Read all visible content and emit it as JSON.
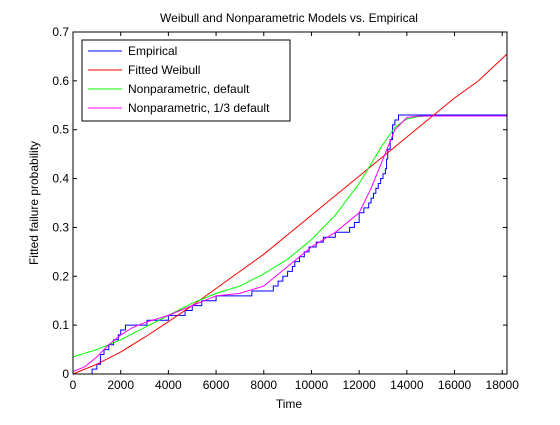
{
  "chart_data": {
    "type": "line",
    "title": "Weibull and Nonparametric Models vs. Empirical",
    "xlabel": "Time",
    "ylabel": "Fitted failure probability",
    "xlim": [
      0,
      18200
    ],
    "ylim": [
      0,
      0.7
    ],
    "xticks": [
      0,
      2000,
      4000,
      6000,
      8000,
      10000,
      12000,
      14000,
      16000,
      18000
    ],
    "yticks": [
      0,
      0.1,
      0.2,
      0.3,
      0.4,
      0.5,
      0.6,
      0.7
    ],
    "xtick_labels": [
      "0",
      "2000",
      "4000",
      "6000",
      "8000",
      "10000",
      "12000",
      "14000",
      "16000",
      "18000"
    ],
    "ytick_labels": [
      "0",
      "0.1",
      "0.2",
      "0.3",
      "0.4",
      "0.5",
      "0.6",
      "0.7"
    ],
    "grid": false,
    "legend_position": "top-left",
    "series": [
      {
        "name": "Empirical",
        "color": "#0000ff",
        "style": "step",
        "x": [
          0,
          800,
          1000,
          1150,
          1300,
          1500,
          1700,
          1900,
          2000,
          2200,
          2500,
          2800,
          3100,
          3500,
          4000,
          4300,
          4700,
          5000,
          5400,
          5700,
          6000,
          6500,
          7000,
          7500,
          8200,
          8400,
          8600,
          8800,
          9000,
          9200,
          9300,
          9500,
          9700,
          9900,
          10200,
          10500,
          10800,
          11000,
          11300,
          11600,
          11800,
          12000,
          12200,
          12400,
          12500,
          12600,
          12700,
          12800,
          12900,
          13000,
          13100,
          13150,
          13200,
          13300,
          13400,
          13500,
          13650,
          14200,
          18200
        ],
        "values": [
          0,
          0.01,
          0.02,
          0.04,
          0.05,
          0.06,
          0.07,
          0.08,
          0.09,
          0.1,
          0.1,
          0.1,
          0.11,
          0.11,
          0.12,
          0.12,
          0.13,
          0.14,
          0.15,
          0.15,
          0.16,
          0.16,
          0.16,
          0.17,
          0.17,
          0.18,
          0.19,
          0.2,
          0.21,
          0.22,
          0.23,
          0.24,
          0.25,
          0.26,
          0.27,
          0.28,
          0.28,
          0.29,
          0.29,
          0.3,
          0.31,
          0.33,
          0.34,
          0.35,
          0.36,
          0.37,
          0.38,
          0.39,
          0.4,
          0.41,
          0.42,
          0.44,
          0.46,
          0.48,
          0.51,
          0.52,
          0.53,
          0.53,
          0.53
        ]
      },
      {
        "name": "Fitted Weibull",
        "color": "#ff0000",
        "style": "line",
        "x": [
          0,
          1000,
          2000,
          3000,
          4000,
          5000,
          6000,
          7000,
          8000,
          9000,
          10000,
          11000,
          12000,
          13000,
          14000,
          15000,
          16000,
          17000,
          18200
        ],
        "values": [
          0,
          0.02,
          0.045,
          0.075,
          0.107,
          0.14,
          0.175,
          0.21,
          0.245,
          0.285,
          0.325,
          0.365,
          0.405,
          0.445,
          0.485,
          0.525,
          0.565,
          0.6,
          0.655
        ]
      },
      {
        "name": "Nonparametric, default",
        "color": "#00ff00",
        "style": "line",
        "x": [
          0,
          1000,
          2000,
          3000,
          4000,
          5000,
          6000,
          7000,
          8000,
          9000,
          10000,
          11000,
          12000,
          12500,
          13000,
          13500,
          14000,
          14500,
          15000,
          18200
        ],
        "values": [
          0.035,
          0.05,
          0.07,
          0.095,
          0.12,
          0.145,
          0.165,
          0.18,
          0.205,
          0.235,
          0.275,
          0.325,
          0.39,
          0.43,
          0.47,
          0.505,
          0.522,
          0.527,
          0.528,
          0.528
        ]
      },
      {
        "name": "Nonparametric, 1/3 default",
        "color": "#ff00ff",
        "style": "line",
        "x": [
          0,
          500,
          1000,
          1500,
          2000,
          2500,
          3000,
          4000,
          5000,
          6000,
          7000,
          8000,
          9000,
          10000,
          11000,
          12000,
          12500,
          13000,
          13500,
          14000,
          14500,
          18200
        ],
        "values": [
          0.005,
          0.015,
          0.035,
          0.06,
          0.08,
          0.095,
          0.105,
          0.12,
          0.14,
          0.16,
          0.165,
          0.18,
          0.22,
          0.26,
          0.29,
          0.33,
          0.38,
          0.44,
          0.5,
          0.525,
          0.528,
          0.528
        ]
      }
    ]
  }
}
